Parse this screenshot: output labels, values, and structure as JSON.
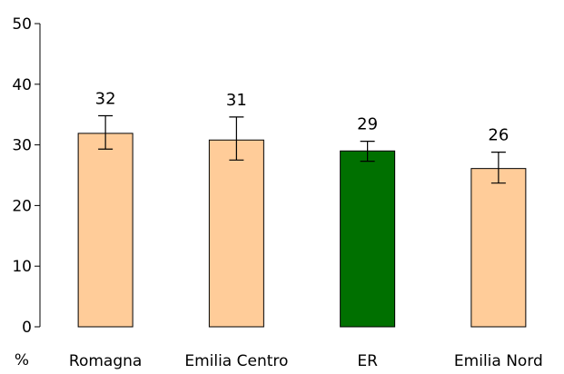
{
  "chart_data": {
    "type": "bar",
    "title": "",
    "xlabel": "",
    "ylabel": "%",
    "ylim": [
      0,
      50
    ],
    "yticks": [
      0,
      10,
      20,
      30,
      40,
      50
    ],
    "grid": false,
    "categories": [
      "Romagna",
      "Emilia Centro",
      "ER",
      "Emilia Nord"
    ],
    "values": [
      32,
      31,
      29,
      26
    ],
    "bar_values": [
      31.9,
      30.8,
      29.0,
      26.1
    ],
    "error_low": [
      29.3,
      27.5,
      27.3,
      23.7
    ],
    "error_high": [
      34.8,
      34.6,
      30.6,
      28.8
    ],
    "data_labels": [
      "32",
      "31",
      "29",
      "26"
    ],
    "colors": {
      "default_bar": "#FFCC99",
      "highlight_bar": "#007000",
      "bar_outline": "#000000"
    },
    "highlight_category": "ER"
  }
}
